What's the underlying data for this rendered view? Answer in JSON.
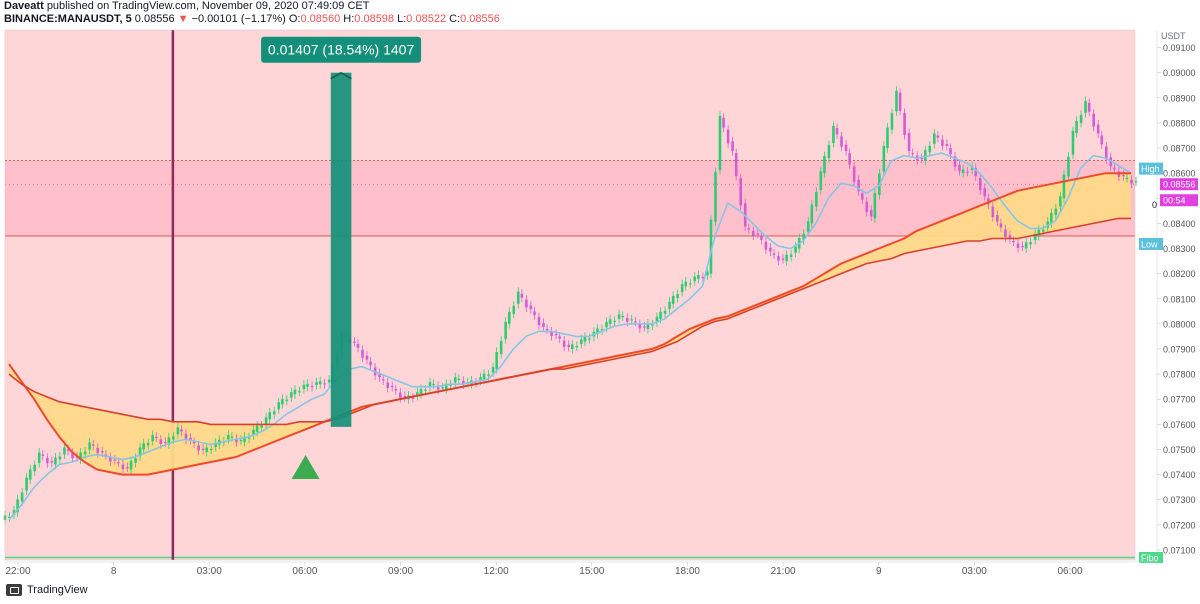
{
  "header": {
    "author": "Daveatt",
    "published_text": "published on TradingView.com, November 09, 2020 07:49:09 CET",
    "symbol": "BINANCE:MANAUSDT, 5",
    "last": "0.08556",
    "change_arrow": "▼",
    "change": "−0.00101 (−1.17%)",
    "o_label": "O:",
    "o_value": "0.08560",
    "h_label": "H:",
    "h_value": "0.08598",
    "l_label": "L:",
    "l_value": "0.08522",
    "c_label": "C:",
    "c_value": "0.08556"
  },
  "footer": {
    "brand": "TradingView",
    "logo_icon": "tradingview-logo-icon"
  },
  "measure_label": "0.01407 (18.54%) 1407",
  "colors": {
    "background": "#ffd6d8",
    "zone": "#ffc0cb",
    "band_fill": "#ffd98a",
    "band_line": "#ef4a2a",
    "teal": "#14907a",
    "up": "#2ecc71",
    "down": "#d65cd6",
    "ma": "#87c5e6",
    "fibo": "#4cd98a",
    "vline": "#8b2a5b"
  },
  "chart_data": {
    "type": "line",
    "title": "",
    "xlabel": "",
    "ylabel": "",
    "currency": "USDT",
    "ylim": [
      0.0706,
      0.0917
    ],
    "y_ticks": [
      "0.09100",
      "0.09000",
      "0.08900",
      "0.08800",
      "0.08700",
      "0.08600",
      "0.08500",
      "0.08400",
      "0.08300",
      "0.08200",
      "0.08100",
      "0.08000",
      "0.07900",
      "0.07800",
      "0.07700",
      "0.07600",
      "0.07500",
      "0.07400",
      "0.07300",
      "0.07200",
      "0.07100"
    ],
    "x_ticks": [
      "22:00",
      "8",
      "03:00",
      "06:00",
      "09:00",
      "12:00",
      "15:00",
      "18:00",
      "21:00",
      "9",
      "03:00",
      "06:00"
    ],
    "price_labels": {
      "high_tag": "High",
      "current": "0.08556",
      "countdown": "00:54",
      "low_tag": "Low",
      "fibo_tag": "Fibo",
      "current_left": "0"
    },
    "levels": {
      "zone_high": 0.0865,
      "zone_low": 0.0835,
      "current": 0.08556,
      "fibo": 0.0707
    },
    "series": [
      {
        "key": "close",
        "values": [
          0.0725,
          0.0738,
          0.0748,
          0.0744,
          0.075,
          0.0746,
          0.0752,
          0.0748,
          0.0745,
          0.0742,
          0.075,
          0.0755,
          0.0752,
          0.0758,
          0.0753,
          0.0749,
          0.0752,
          0.0755,
          0.0753,
          0.0757,
          0.0762,
          0.0768,
          0.0772,
          0.0775,
          0.0776,
          0.0777,
          0.0795,
          0.0792,
          0.0785,
          0.0778,
          0.0774,
          0.077,
          0.0772,
          0.0776,
          0.0774,
          0.0778,
          0.0776,
          0.0778,
          0.0782,
          0.08,
          0.0812,
          0.0805,
          0.0798,
          0.0795,
          0.079,
          0.0793,
          0.0796,
          0.08,
          0.0803,
          0.0801,
          0.0798,
          0.0802,
          0.0808,
          0.0815,
          0.0818,
          0.082,
          0.0882,
          0.0868,
          0.0838,
          0.0835,
          0.0828,
          0.0825,
          0.083,
          0.084,
          0.086,
          0.0878,
          0.0868,
          0.0852,
          0.0842,
          0.087,
          0.0892,
          0.0868,
          0.0865,
          0.0875,
          0.087,
          0.086,
          0.0862,
          0.085,
          0.084,
          0.0833,
          0.083,
          0.0835,
          0.084,
          0.085,
          0.0876,
          0.0888,
          0.0875,
          0.0862,
          0.0858,
          0.0856
        ]
      },
      {
        "key": "ma",
        "values": [
          0.0722,
          0.0728,
          0.0735,
          0.074,
          0.0744,
          0.0745,
          0.0747,
          0.0748,
          0.0747,
          0.0746,
          0.0747,
          0.0749,
          0.0751,
          0.0753,
          0.0754,
          0.0753,
          0.0752,
          0.0753,
          0.0754,
          0.0755,
          0.0757,
          0.076,
          0.0764,
          0.0767,
          0.077,
          0.0772,
          0.0778,
          0.0782,
          0.0783,
          0.0781,
          0.0779,
          0.0777,
          0.0775,
          0.0775,
          0.0775,
          0.0776,
          0.0776,
          0.0777,
          0.0778,
          0.0783,
          0.079,
          0.0795,
          0.0797,
          0.0797,
          0.0796,
          0.0795,
          0.0795,
          0.0797,
          0.0799,
          0.08,
          0.08,
          0.08,
          0.0802,
          0.0806,
          0.081,
          0.0815,
          0.0835,
          0.0848,
          0.0845,
          0.084,
          0.0835,
          0.0831,
          0.083,
          0.0833,
          0.084,
          0.085,
          0.0856,
          0.0855,
          0.0852,
          0.0855,
          0.0865,
          0.0867,
          0.0866,
          0.0867,
          0.0868,
          0.0866,
          0.0864,
          0.086,
          0.0854,
          0.0847,
          0.0841,
          0.0838,
          0.0838,
          0.0841,
          0.085,
          0.0862,
          0.0867,
          0.0866,
          0.0863,
          0.086
        ]
      },
      {
        "key": "band_fast",
        "values": [
          0.0784,
          0.0777,
          0.077,
          0.0762,
          0.0755,
          0.0749,
          0.0745,
          0.0742,
          0.0741,
          0.074,
          0.074,
          0.074,
          0.0741,
          0.0742,
          0.0743,
          0.0744,
          0.0745,
          0.0746,
          0.0747,
          0.0749,
          0.0751,
          0.0753,
          0.0755,
          0.0757,
          0.0759,
          0.0761,
          0.0763,
          0.0765,
          0.0767,
          0.0768,
          0.0769,
          0.077,
          0.0771,
          0.0772,
          0.0773,
          0.0774,
          0.0775,
          0.0776,
          0.0777,
          0.0778,
          0.0779,
          0.078,
          0.0781,
          0.0782,
          0.0783,
          0.0784,
          0.0785,
          0.0786,
          0.0787,
          0.0788,
          0.0789,
          0.079,
          0.0792,
          0.0795,
          0.0798,
          0.08,
          0.0802,
          0.0803,
          0.0805,
          0.0807,
          0.0809,
          0.0811,
          0.0813,
          0.0815,
          0.0818,
          0.0821,
          0.0824,
          0.0826,
          0.0828,
          0.083,
          0.0832,
          0.0834,
          0.0837,
          0.0839,
          0.0841,
          0.0843,
          0.0845,
          0.0847,
          0.0849,
          0.0851,
          0.0853,
          0.0854,
          0.0855,
          0.0856,
          0.0857,
          0.0858,
          0.0859,
          0.086,
          0.086,
          0.086
        ]
      },
      {
        "key": "band_slow",
        "values": [
          0.078,
          0.0776,
          0.0773,
          0.0771,
          0.0769,
          0.0768,
          0.0767,
          0.0766,
          0.0765,
          0.0764,
          0.0763,
          0.0762,
          0.0762,
          0.0761,
          0.0761,
          0.0761,
          0.076,
          0.076,
          0.076,
          0.076,
          0.076,
          0.076,
          0.076,
          0.0761,
          0.0761,
          0.0761,
          0.0762,
          0.0764,
          0.0766,
          0.0768,
          0.0769,
          0.077,
          0.0771,
          0.0772,
          0.0773,
          0.0774,
          0.0775,
          0.0776,
          0.0777,
          0.0778,
          0.0779,
          0.078,
          0.0781,
          0.0782,
          0.0782,
          0.0783,
          0.0784,
          0.0785,
          0.0786,
          0.0787,
          0.0788,
          0.0789,
          0.0791,
          0.0793,
          0.0796,
          0.0799,
          0.0801,
          0.0802,
          0.0804,
          0.0806,
          0.0808,
          0.081,
          0.0812,
          0.0814,
          0.0816,
          0.0818,
          0.082,
          0.0822,
          0.0824,
          0.0825,
          0.0826,
          0.0828,
          0.0829,
          0.083,
          0.0831,
          0.0832,
          0.0833,
          0.0833,
          0.0834,
          0.0834,
          0.0834,
          0.0835,
          0.0836,
          0.0837,
          0.0838,
          0.0839,
          0.084,
          0.0841,
          0.0842,
          0.0842
        ]
      }
    ],
    "measure": {
      "x_index": [
        26,
        27
      ],
      "from": 0.0759,
      "to": 0.09
    },
    "buy_marker_index": 24,
    "vertical_line_index": 13
  }
}
